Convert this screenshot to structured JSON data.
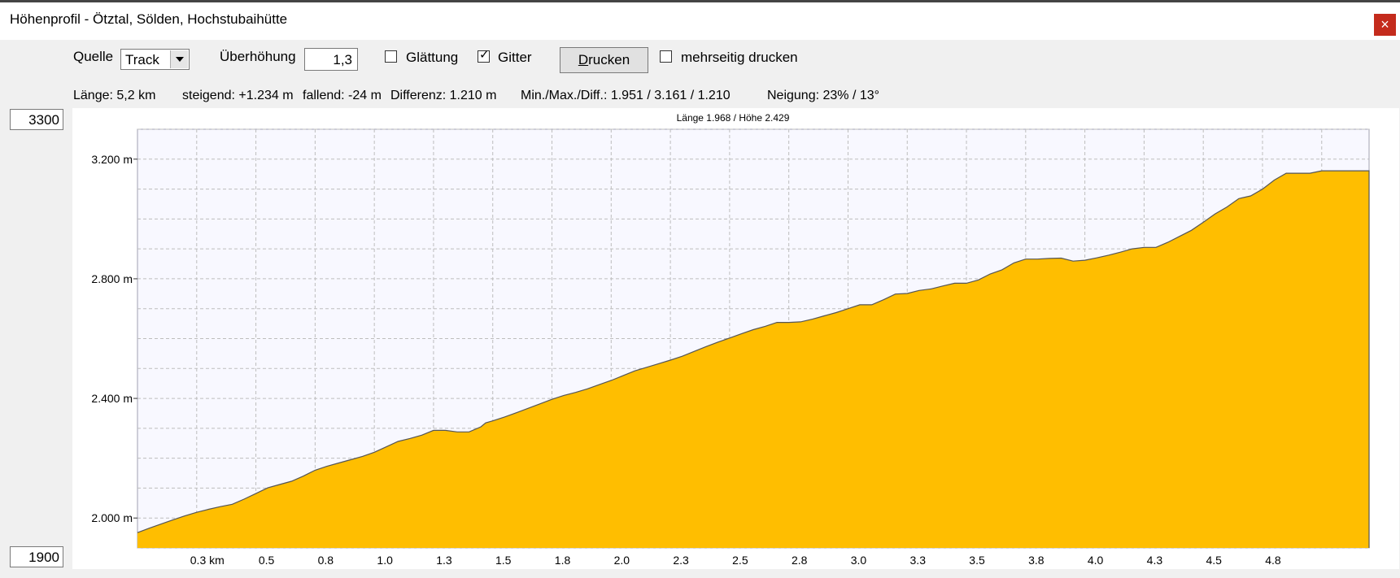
{
  "window": {
    "title": "Höhenprofil - Ötztal, Sölden, Hochstubaihütte",
    "close_glyph": "×"
  },
  "toolbar": {
    "source_label": "Quelle",
    "source_value": "Track",
    "exaggeration_label": "Überhöhung",
    "exaggeration_value": "1,3",
    "smoothing_label": "Glättung",
    "smoothing_checked": false,
    "grid_label": "Gitter",
    "grid_checked": true,
    "check_glyph": "✓",
    "print_label_underlined": "D",
    "print_label_rest": "rucken",
    "multipage_label": "mehrseitig drucken",
    "multipage_checked": false
  },
  "stats": {
    "length": "Länge: 5,2 km",
    "ascending": "steigend: +1.234 m",
    "descending": "fallend: -24 m",
    "difference": "Differenz: 1.210 m",
    "minmax": "Min./Max./Diff.: 1.951 / 3.161 / 1.210",
    "slope": "Neigung: 23% / 13°"
  },
  "axis_inputs": {
    "max": "3300",
    "min": "1900"
  },
  "chart_data": {
    "type": "area",
    "title": "Länge 1.968 / Höhe 2.429",
    "xlabel": "",
    "ylabel": "",
    "xlim": [
      0,
      5.2
    ],
    "ylim": [
      1900,
      3300
    ],
    "grid": true,
    "fill_color": "#ffbe00",
    "line_color": "#555555",
    "plot_bg": "#f8f8ff",
    "grid_color": "#bdbdbd",
    "y_ticks": [
      {
        "value": 2000,
        "label": "2.000 m"
      },
      {
        "value": 2400,
        "label": "2.400 m"
      },
      {
        "value": 2800,
        "label": "2.800 m"
      },
      {
        "value": 3200,
        "label": "3.200 m"
      }
    ],
    "y_minor_grid": [
      1900,
      2000,
      2100,
      2200,
      2300,
      2400,
      2500,
      2600,
      2700,
      2800,
      2900,
      3000,
      3100,
      3200,
      3300
    ],
    "x_ticks": [
      {
        "value": 0.25,
        "label": "0.3 km"
      },
      {
        "value": 0.5,
        "label": "0.5"
      },
      {
        "value": 0.75,
        "label": "0.8"
      },
      {
        "value": 1.0,
        "label": "1.0"
      },
      {
        "value": 1.25,
        "label": "1.3"
      },
      {
        "value": 1.5,
        "label": "1.5"
      },
      {
        "value": 1.75,
        "label": "1.8"
      },
      {
        "value": 2.0,
        "label": "2.0"
      },
      {
        "value": 2.25,
        "label": "2.3"
      },
      {
        "value": 2.5,
        "label": "2.5"
      },
      {
        "value": 2.75,
        "label": "2.8"
      },
      {
        "value": 3.0,
        "label": "3.0"
      },
      {
        "value": 3.25,
        "label": "3.3"
      },
      {
        "value": 3.5,
        "label": "3.5"
      },
      {
        "value": 3.75,
        "label": "3.8"
      },
      {
        "value": 4.0,
        "label": "4.0"
      },
      {
        "value": 4.25,
        "label": "4.3"
      },
      {
        "value": 4.5,
        "label": "4.5"
      },
      {
        "value": 4.75,
        "label": "4.8"
      }
    ],
    "x_grid_extra": [
      5.0
    ],
    "series": [
      {
        "x": [
          0.0,
          0.05,
          0.1,
          0.15,
          0.2,
          0.25,
          0.3,
          0.35,
          0.4,
          0.45,
          0.5,
          0.55,
          0.6,
          0.65,
          0.7,
          0.75,
          0.8,
          0.85,
          0.9,
          0.95,
          1.0,
          1.05,
          1.1,
          1.15,
          1.2,
          1.25,
          1.3,
          1.35,
          1.4,
          1.45,
          1.47,
          1.5,
          1.55,
          1.6,
          1.65,
          1.7,
          1.75,
          1.8,
          1.85,
          1.9,
          1.95,
          2.0,
          2.05,
          2.1,
          2.15,
          2.2,
          2.25,
          2.3,
          2.35,
          2.4,
          2.45,
          2.5,
          2.55,
          2.6,
          2.65,
          2.7,
          2.75,
          2.8,
          2.85,
          2.9,
          2.95,
          3.0,
          3.05,
          3.1,
          3.15,
          3.2,
          3.25,
          3.3,
          3.35,
          3.4,
          3.45,
          3.5,
          3.55,
          3.6,
          3.65,
          3.7,
          3.75,
          3.8,
          3.85,
          3.9,
          3.95,
          4.0,
          4.05,
          4.1,
          4.15,
          4.2,
          4.25,
          4.3,
          4.35,
          4.4,
          4.45,
          4.5,
          4.55,
          4.6,
          4.65,
          4.7,
          4.75,
          4.8,
          4.85,
          4.9,
          4.95,
          5.0,
          5.05,
          5.1,
          5.15,
          5.2
        ],
        "y": [
          1951,
          1966,
          1980,
          1994,
          2007,
          2019,
          2029,
          2038,
          2046,
          2063,
          2082,
          2101,
          2112,
          2123,
          2140,
          2160,
          2173,
          2184,
          2195,
          2206,
          2220,
          2238,
          2256,
          2266,
          2277,
          2293,
          2293,
          2288,
          2288,
          2305,
          2318,
          2325,
          2338,
          2352,
          2367,
          2382,
          2397,
          2410,
          2420,
          2432,
          2446,
          2460,
          2476,
          2492,
          2504,
          2516,
          2528,
          2541,
          2557,
          2573,
          2588,
          2602,
          2616,
          2630,
          2641,
          2654,
          2654,
          2656,
          2665,
          2676,
          2687,
          2700,
          2713,
          2713,
          2730,
          2749,
          2751,
          2761,
          2766,
          2776,
          2785,
          2785,
          2796,
          2816,
          2830,
          2853,
          2866,
          2866,
          2868,
          2869,
          2859,
          2862,
          2870,
          2879,
          2889,
          2900,
          2905,
          2905,
          2922,
          2942,
          2962,
          2989,
          3017,
          3040,
          3068,
          3077,
          3100,
          3130,
          3153,
          3153,
          3153,
          3161,
          3161,
          3161,
          3161,
          3161
        ]
      }
    ]
  }
}
